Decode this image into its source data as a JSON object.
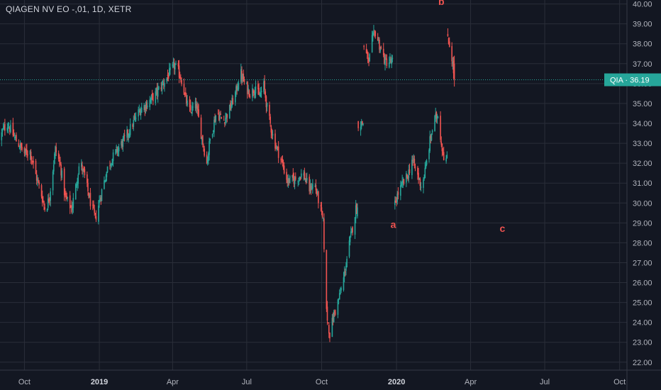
{
  "title": "QIAGEN NV EO -,01, 1D, XETR",
  "colors": {
    "background": "#131722",
    "grid": "#2a2e39",
    "up": "#26a69a",
    "down": "#ef5350",
    "price_line": "#26a69a",
    "axis_text": "#b2b5be",
    "wave_label": "#ef5350"
  },
  "price_tag": {
    "symbol": "QIA",
    "separator": "·",
    "value": "36.19"
  },
  "wave_labels": [
    {
      "text": "a",
      "date": "2019-12-28",
      "price": 28.75
    },
    {
      "text": "b",
      "date": "2020-02-25",
      "price": 39.95
    },
    {
      "text": "c",
      "date": "2020-05-10",
      "price": 28.55
    }
  ],
  "chart_data": {
    "type": "candlestick",
    "title": "QIAGEN NV EO -,01, 1D, XETR",
    "xlabel": "",
    "ylabel": "",
    "x_range": [
      "2018-09-01",
      "2020-10-10"
    ],
    "ylim": [
      21.6,
      40.2
    ],
    "grid": true,
    "x_ticks": [
      {
        "label": "Oct",
        "date": "2018-10-01",
        "bold": false
      },
      {
        "label": "2019",
        "date": "2019-01-01",
        "bold": true
      },
      {
        "label": "Apr",
        "date": "2019-04-01",
        "bold": false
      },
      {
        "label": "Jul",
        "date": "2019-07-01",
        "bold": false
      },
      {
        "label": "Oct",
        "date": "2019-10-01",
        "bold": false
      },
      {
        "label": "2020",
        "date": "2020-01-01",
        "bold": true
      },
      {
        "label": "Apr",
        "date": "2020-04-01",
        "bold": false
      },
      {
        "label": "Jul",
        "date": "2020-07-01",
        "bold": false
      },
      {
        "label": "Oct",
        "date": "2020-10-01",
        "bold": false
      }
    ],
    "y_ticks": [
      "22.00",
      "23.00",
      "24.00",
      "25.00",
      "26.00",
      "27.00",
      "28.00",
      "29.00",
      "30.00",
      "31.00",
      "32.00",
      "33.00",
      "34.00",
      "35.00",
      "36.00",
      "37.00",
      "38.00",
      "39.00",
      "40.00"
    ],
    "last_price": 36.19,
    "close_path": [
      [
        "2018-09-01",
        33.2
      ],
      [
        "2018-09-04",
        33.6
      ],
      [
        "2018-09-10",
        34.0
      ],
      [
        "2018-09-20",
        33.2
      ],
      [
        "2018-10-01",
        32.5
      ],
      [
        "2018-10-08",
        32.6
      ],
      [
        "2018-10-15",
        31.4
      ],
      [
        "2018-10-22",
        30.4
      ],
      [
        "2018-10-27",
        29.6
      ],
      [
        "2018-11-01",
        30.4
      ],
      [
        "2018-11-08",
        32.7
      ],
      [
        "2018-11-14",
        31.9
      ],
      [
        "2018-11-20",
        30.3
      ],
      [
        "2018-11-28",
        29.7
      ],
      [
        "2018-12-03",
        30.8
      ],
      [
        "2018-12-08",
        32.1
      ],
      [
        "2018-12-14",
        31.3
      ],
      [
        "2018-12-20",
        30.2
      ],
      [
        "2018-12-27",
        29.2
      ],
      [
        "2019-01-04",
        30.6
      ],
      [
        "2019-01-12",
        31.9
      ],
      [
        "2019-01-22",
        32.6
      ],
      [
        "2019-02-01",
        33.2
      ],
      [
        "2019-02-10",
        33.9
      ],
      [
        "2019-02-20",
        34.7
      ],
      [
        "2019-03-01",
        35.0
      ],
      [
        "2019-03-10",
        35.4
      ],
      [
        "2019-03-20",
        36.0
      ],
      [
        "2019-03-28",
        36.5
      ],
      [
        "2019-04-03",
        36.9
      ],
      [
        "2019-04-08",
        36.6
      ],
      [
        "2019-04-12",
        36.2
      ],
      [
        "2019-04-17",
        35.2
      ],
      [
        "2019-04-22",
        34.6
      ],
      [
        "2019-04-30",
        34.9
      ],
      [
        "2019-05-06",
        33.5
      ],
      [
        "2019-05-13",
        32.0
      ],
      [
        "2019-05-17",
        33.2
      ],
      [
        "2019-05-25",
        34.6
      ],
      [
        "2019-06-02",
        34.1
      ],
      [
        "2019-06-10",
        34.7
      ],
      [
        "2019-06-18",
        35.6
      ],
      [
        "2019-06-23",
        36.6
      ],
      [
        "2019-06-29",
        35.9
      ],
      [
        "2019-07-06",
        35.5
      ],
      [
        "2019-07-12",
        35.9
      ],
      [
        "2019-07-16",
        35.3
      ],
      [
        "2019-07-22",
        35.9
      ],
      [
        "2019-07-27",
        34.5
      ],
      [
        "2019-08-03",
        33.2
      ],
      [
        "2019-08-12",
        32.2
      ],
      [
        "2019-08-20",
        31.1
      ],
      [
        "2019-08-30",
        31.2
      ],
      [
        "2019-09-08",
        31.5
      ],
      [
        "2019-09-16",
        30.7
      ],
      [
        "2019-09-22",
        31.0
      ],
      [
        "2019-09-28",
        30.0
      ],
      [
        "2019-10-03",
        29.0
      ],
      [
        "2019-10-07",
        24.5
      ],
      [
        "2019-10-11",
        23.4
      ],
      [
        "2019-10-16",
        24.4
      ],
      [
        "2019-10-23",
        25.3
      ],
      [
        "2019-10-28",
        26.2
      ],
      [
        "2019-11-03",
        27.7
      ],
      [
        "2019-11-09",
        29.0
      ],
      [
        "2019-11-12",
        29.7
      ],
      [
        "2019-11-15",
        34.0
      ],
      [
        "2019-11-22",
        37.9
      ],
      [
        "2019-11-28",
        37.0
      ],
      [
        "2019-12-02",
        38.2
      ],
      [
        "2019-12-06",
        38.6
      ],
      [
        "2019-12-12",
        37.8
      ],
      [
        "2019-12-18",
        37.1
      ],
      [
        "2019-12-24",
        37.1
      ],
      [
        "2019-12-29",
        29.8
      ],
      [
        "2020-01-03",
        30.5
      ],
      [
        "2020-01-08",
        30.9
      ],
      [
        "2020-01-15",
        31.4
      ],
      [
        "2020-01-20",
        32.2
      ],
      [
        "2020-01-26",
        31.5
      ],
      [
        "2020-02-01",
        30.8
      ],
      [
        "2020-02-06",
        31.8
      ],
      [
        "2020-02-11",
        33.1
      ],
      [
        "2020-02-16",
        34.1
      ],
      [
        "2020-02-21",
        34.5
      ],
      [
        "2020-02-25",
        33.0
      ],
      [
        "2020-02-29",
        32.2
      ],
      [
        "2020-03-04",
        38.4
      ],
      [
        "2020-03-09",
        37.3
      ],
      [
        "2020-03-12",
        36.19
      ]
    ],
    "gaps_before": [
      "2019-11-15",
      "2019-11-22",
      "2019-12-29",
      "2020-03-04"
    ]
  }
}
